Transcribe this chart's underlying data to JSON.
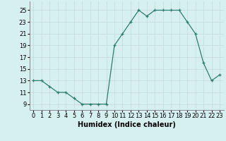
{
  "x": [
    0,
    1,
    2,
    3,
    4,
    5,
    6,
    7,
    8,
    9,
    10,
    11,
    12,
    13,
    14,
    15,
    16,
    17,
    18,
    19,
    20,
    21,
    22,
    23
  ],
  "y": [
    13,
    13,
    12,
    11,
    11,
    10,
    9,
    9,
    9,
    9,
    19,
    21,
    23,
    25,
    24,
    25,
    25,
    25,
    25,
    23,
    21,
    16,
    13,
    14
  ],
  "line_color": "#2e7d6e",
  "marker": "+",
  "marker_size": 3,
  "xlabel": "Humidex (Indice chaleur)",
  "xlim": [
    -0.5,
    23.5
  ],
  "ylim": [
    8,
    26.5
  ],
  "yticks": [
    9,
    11,
    13,
    15,
    17,
    19,
    21,
    23,
    25
  ],
  "grid_color": "#c8dede",
  "bg_color": "#d6f0f0",
  "label_fontsize": 7,
  "tick_fontsize": 6
}
